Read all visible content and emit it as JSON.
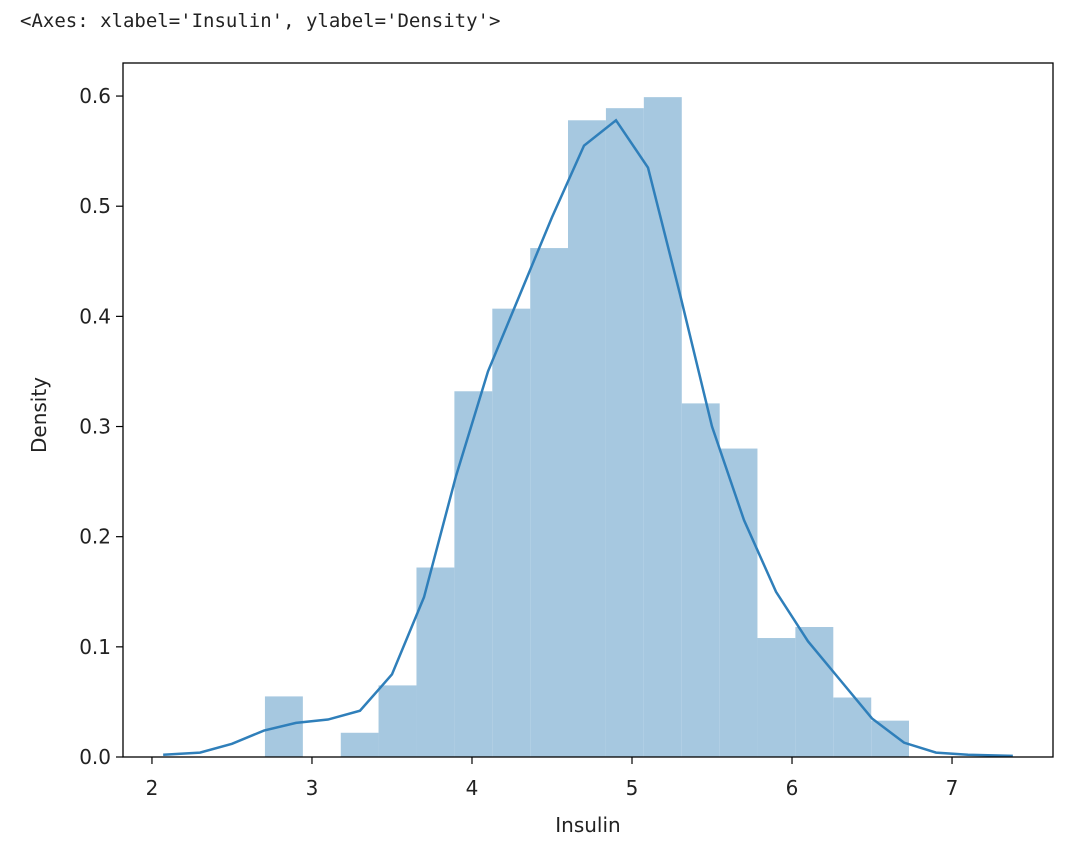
{
  "output_text": "<Axes: xlabel='Insulin', ylabel='Density'>",
  "chart_data": {
    "type": "histogram",
    "xlabel": "Insulin",
    "ylabel": "Density",
    "color": "#a6c8e0",
    "bins": [
      2.706,
      2.943,
      3.18,
      3.416,
      3.653,
      3.89,
      4.127,
      4.364,
      4.6,
      4.837,
      5.074,
      5.311,
      5.548,
      5.784,
      6.021,
      6.258,
      6.495,
      6.731
    ],
    "values": [
      0.055,
      0,
      0.022,
      0.065,
      0.172,
      0.332,
      0.407,
      0.462,
      0.578,
      0.589,
      0.599,
      0.321,
      0.28,
      0.108,
      0.118,
      0.054,
      0.033
    ],
    "kde": {
      "color": "#2f7fba",
      "x": [
        2.07,
        2.3,
        2.5,
        2.7,
        2.9,
        3.1,
        3.3,
        3.5,
        3.7,
        3.9,
        4.1,
        4.3,
        4.5,
        4.7,
        4.9,
        5.1,
        5.3,
        5.5,
        5.7,
        5.9,
        6.1,
        6.3,
        6.5,
        6.7,
        6.9,
        7.1,
        7.38
      ],
      "values": [
        0.002,
        0.004,
        0.012,
        0.024,
        0.031,
        0.034,
        0.042,
        0.075,
        0.145,
        0.255,
        0.35,
        0.42,
        0.49,
        0.555,
        0.578,
        0.535,
        0.42,
        0.3,
        0.215,
        0.15,
        0.105,
        0.07,
        0.035,
        0.013,
        0.004,
        0.002,
        0.001
      ]
    },
    "xlim": [
      1.819,
      7.631
    ],
    "ylim": [
      0,
      0.63
    ],
    "xticks": [
      2,
      3,
      4,
      5,
      6,
      7
    ],
    "yticks": [
      {
        "value": 0,
        "label": "0.0"
      },
      0.1,
      0.2,
      0.3,
      0.4,
      0.5,
      0.6
    ]
  }
}
